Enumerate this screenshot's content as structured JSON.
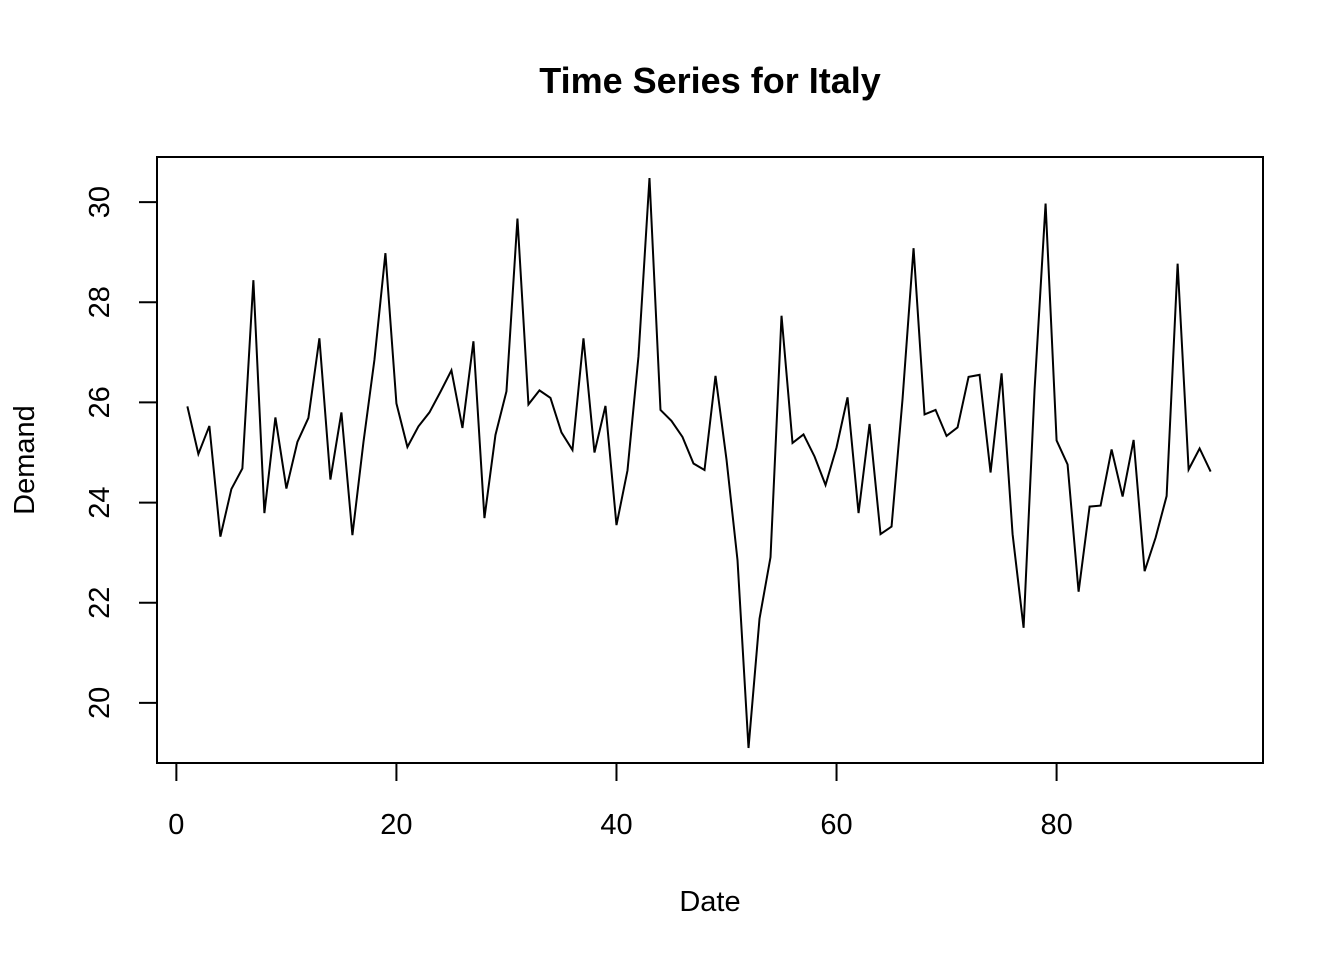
{
  "chart_data": {
    "type": "line",
    "title": "Time Series for Italy",
    "xlabel": "Date",
    "ylabel": "Demand",
    "xlim": [
      -1.76,
      98.76
    ],
    "ylim": [
      18.8,
      30.9
    ],
    "xticks": [
      "0",
      "20",
      "40",
      "60",
      "80"
    ],
    "yticks": [
      "20",
      "22",
      "24",
      "26",
      "28",
      "30"
    ],
    "grid": false,
    "line_color": "#000000",
    "x": [
      1,
      2,
      3,
      4,
      5,
      6,
      7,
      8,
      9,
      10,
      11,
      12,
      13,
      14,
      15,
      16,
      17,
      18,
      19,
      20,
      21,
      22,
      23,
      24,
      25,
      26,
      27,
      28,
      29,
      30,
      31,
      32,
      33,
      34,
      35,
      36,
      37,
      38,
      39,
      40,
      41,
      42,
      43,
      44,
      45,
      46,
      47,
      48,
      49,
      50,
      51,
      52,
      53,
      54,
      55,
      56,
      57,
      58,
      59,
      60,
      61,
      62,
      63,
      64,
      65,
      66,
      67,
      68,
      69,
      70,
      71,
      72,
      73,
      74,
      75,
      76,
      77,
      78,
      79,
      80,
      81,
      82,
      83,
      84,
      85,
      86,
      87,
      88,
      89,
      90,
      91,
      92,
      93,
      94
    ],
    "series": [
      {
        "values": [
          25.92,
          24.97,
          25.53,
          23.32,
          24.27,
          24.68,
          28.44,
          23.79,
          25.7,
          24.28,
          25.21,
          25.69,
          27.28,
          24.46,
          25.8,
          23.35,
          25.2,
          26.85,
          28.98,
          25.98,
          25.11,
          25.52,
          25.8,
          26.21,
          26.64,
          25.49,
          27.22,
          23.69,
          25.35,
          26.22,
          29.67,
          25.96,
          26.24,
          26.09,
          25.4,
          25.05,
          27.28,
          25.0,
          25.93,
          23.55,
          24.64,
          26.92,
          30.48,
          25.85,
          25.63,
          25.31,
          24.78,
          24.65,
          26.53,
          24.86,
          22.85,
          19.1,
          21.68,
          22.91,
          27.73,
          25.19,
          25.36,
          24.92,
          24.35,
          25.1,
          26.1,
          23.79,
          25.57,
          23.37,
          23.52,
          26.07,
          29.08,
          25.76,
          25.85,
          25.33,
          25.5,
          26.51,
          26.55,
          24.6,
          26.58,
          23.37,
          21.5,
          26.26,
          29.97,
          25.24,
          24.76,
          22.22,
          23.92,
          23.94,
          25.06,
          24.12,
          25.25,
          22.63,
          23.3,
          24.13,
          28.77,
          24.66,
          25.08,
          24.62
        ]
      }
    ]
  }
}
